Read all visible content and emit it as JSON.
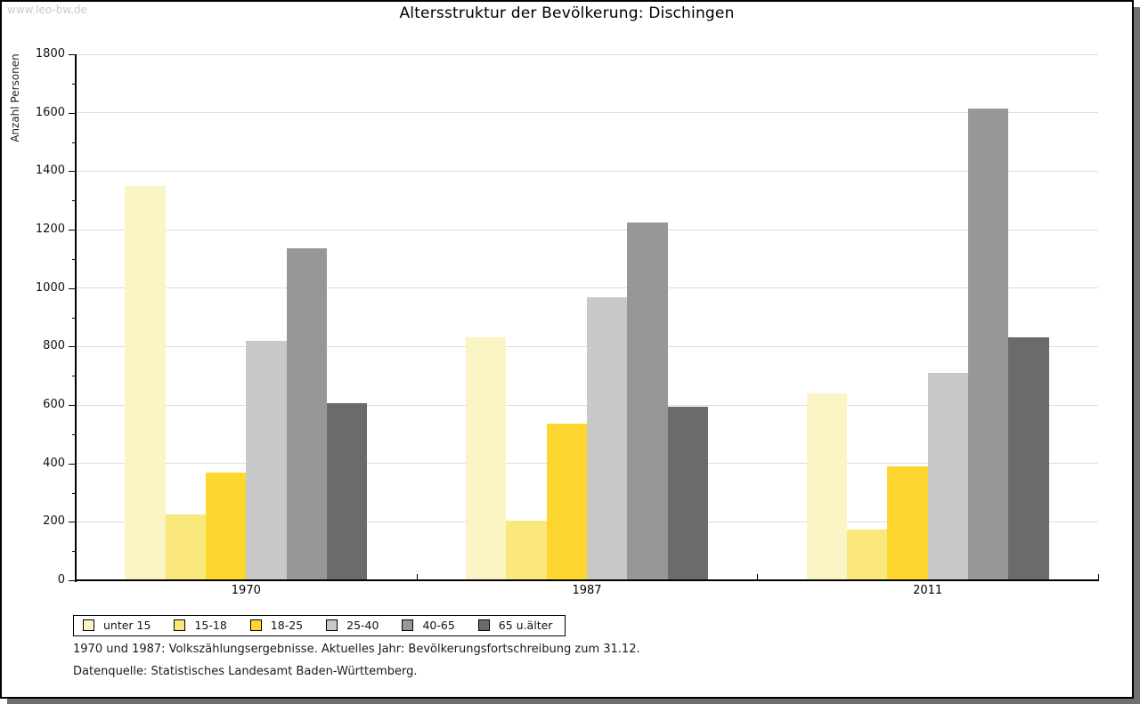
{
  "watermark": "www.leo-bw.de",
  "title": "Altersstruktur der Bevölkerung: Dischingen",
  "footnotes": [
    "1970 und 1987: Volkszählungsergebnisse. Aktuelles Jahr: Bevölkerungsfortschreibung zum 31.12.",
    "Datenquelle: Statistisches Landesamt Baden-Württemberg."
  ],
  "chart_data": {
    "type": "bar",
    "title": "Altersstruktur der Bevölkerung: Dischingen",
    "xlabel": "",
    "ylabel": "Anzahl Personen",
    "categories": [
      "1970",
      "1987",
      "2011"
    ],
    "series": [
      {
        "name": "unter 15",
        "color": "#FBF4C4",
        "values": [
          1350,
          830,
          640
        ]
      },
      {
        "name": "15-18",
        "color": "#FAE87D",
        "values": [
          225,
          205,
          175
        ]
      },
      {
        "name": "18-25",
        "color": "#FDD730",
        "values": [
          370,
          535,
          390
        ]
      },
      {
        "name": "25-40",
        "color": "#C8C8C8",
        "values": [
          820,
          970,
          710
        ]
      },
      {
        "name": "40-65",
        "color": "#979797",
        "values": [
          1135,
          1225,
          1615
        ]
      },
      {
        "name": "65 u.älter",
        "color": "#6B6B6B",
        "values": [
          605,
          595,
          830
        ]
      }
    ],
    "ylim": [
      0,
      1800
    ],
    "ytick_step": 200,
    "ytick_minor_step": 100,
    "grid": true,
    "legend_position": "bottom-left"
  }
}
